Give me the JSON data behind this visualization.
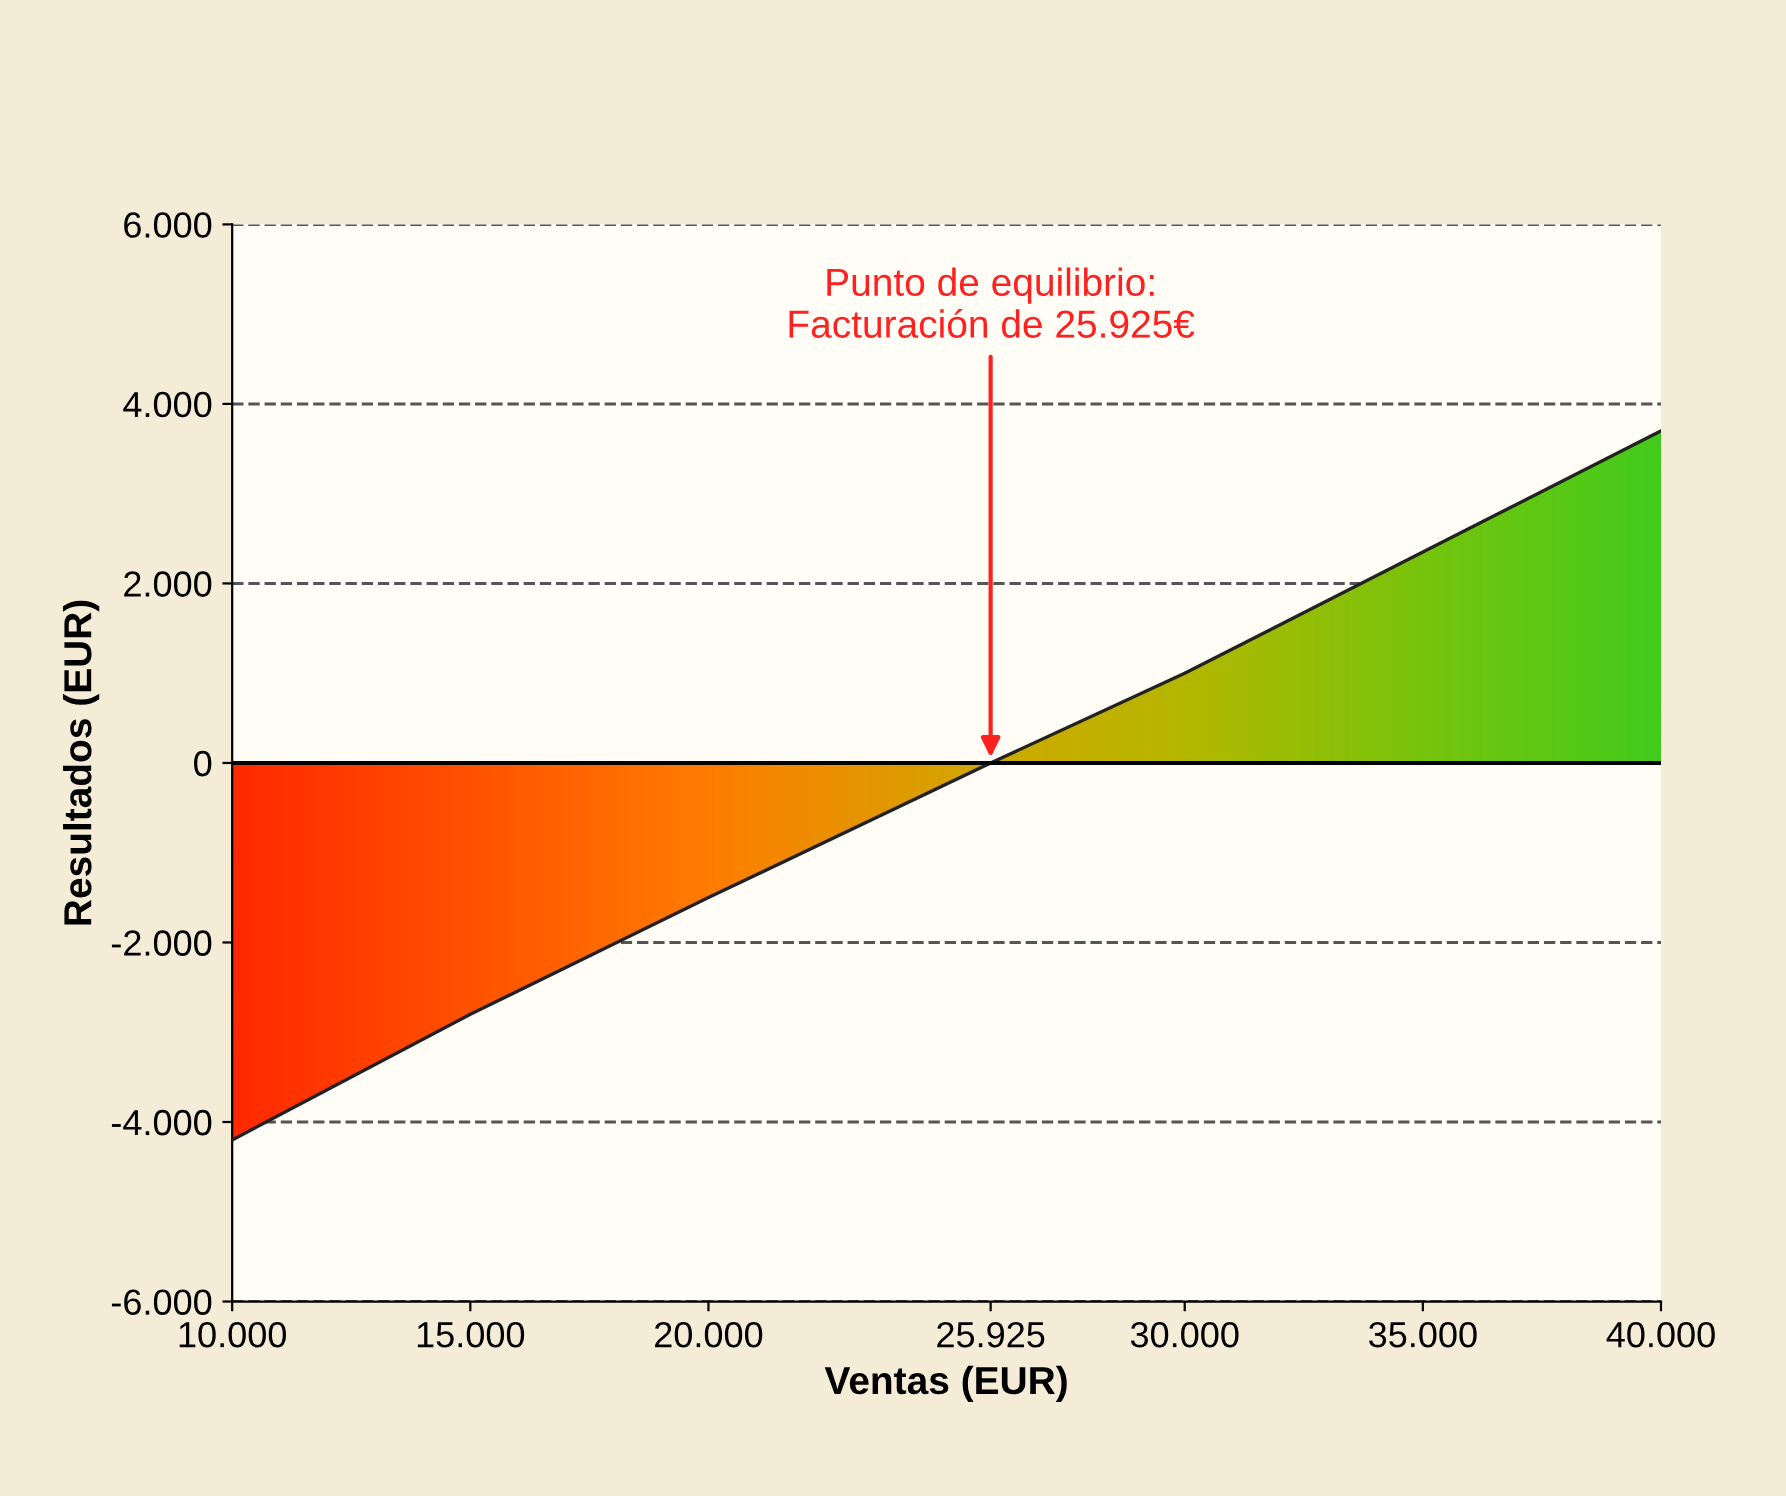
{
  "chart_data": {
    "type": "area",
    "ylabel": "Resultados (EUR)",
    "xlabel": "Ventas (EUR)",
    "x": [
      10000,
      15000,
      20000,
      25925,
      30000,
      35000,
      40000
    ],
    "series": [
      {
        "color": "#ff2a00",
        "colors": [
          "#ff2a00",
          "#ff5a00",
          "#ff8c00",
          "#c8c000",
          "#a8d000",
          "#60e010",
          "#22e822"
        ],
        "values": [
          -4200,
          -2800,
          -1500,
          0,
          1000,
          2350,
          3700
        ]
      }
    ],
    "xlim": [
      10000,
      40000
    ],
    "xticks": [
      {
        "value": 10000,
        "label": "10.000"
      },
      {
        "value": 15000,
        "label": "15.000"
      },
      {
        "value": 20000,
        "label": "20.000"
      },
      {
        "value": 25925,
        "label": "25.925"
      },
      {
        "value": 30000,
        "label": "30.000"
      },
      {
        "value": 35000,
        "label": "35.000"
      },
      {
        "value": 40000,
        "label": "40.000"
      }
    ],
    "ylim": [
      -6000,
      6000
    ],
    "yticks": [
      {
        "value": -6000,
        "label": "-6.000"
      },
      {
        "value": -4000,
        "label": "-4.000"
      },
      {
        "value": -2000,
        "label": "-2.000"
      },
      0,
      {
        "value": 2000,
        "label": "2.000"
      },
      {
        "value": 4000,
        "label": "4.000"
      },
      {
        "value": 6000,
        "label": "6.000"
      }
    ],
    "grid": "y",
    "line_style": "dashed",
    "ref_lines": [
      {
        "axis": "y",
        "value": 0,
        "color": "#000000",
        "line_style": "solid"
      }
    ],
    "annotations": [
      {
        "text": "Punto de equilibrio:\nFacturación de 25.925€",
        "x": 25925,
        "y": 0
      }
    ]
  }
}
